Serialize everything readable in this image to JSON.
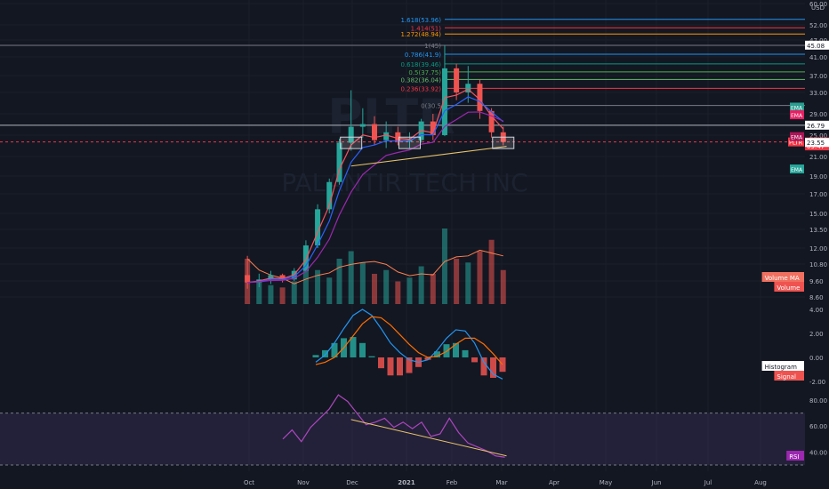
{
  "chart_data": {
    "type": "candlestick",
    "symbol": "PLTR",
    "watermark_text": "PLTR",
    "watermark_subtext": "PALANTIR TECH INC",
    "currency": "USD",
    "price_scale": {
      "ticks": [
        "60.00",
        "52.00",
        "47.00",
        "41.00",
        "37.00",
        "33.00",
        "29.00",
        "25.00",
        "21.00",
        "19.00",
        "17.00",
        "15.00",
        "13.50",
        "12.00",
        "10.80",
        "9.60",
        "8.60"
      ],
      "axis_badges": [
        {
          "label": "45.08",
          "value": 45.08,
          "color": "#ffffff",
          "text_color": "#131722"
        },
        {
          "label": "26.79",
          "value": 26.79,
          "color": "#ffffff",
          "text_color": "#131722"
        },
        {
          "label": "23.65",
          "value": 23.65,
          "color": "#f23645",
          "text_color": "#ffffff"
        },
        {
          "label": "09:47",
          "value": 22.9,
          "color": "#f23645",
          "text_color": "#ffffff"
        },
        {
          "label": "23.55",
          "value": 23.55,
          "color": "#ffffff",
          "text_color": "#131722"
        }
      ],
      "symbol_badge": "PLTR"
    },
    "indicator_badges": [
      {
        "label": "EMA",
        "value": 30.2,
        "color": "#2a9d8f"
      },
      {
        "label": "EMA",
        "value": 28.8,
        "color": "#e91e63"
      },
      {
        "label": "EMA",
        "value": 24.7,
        "color": "#ad1457"
      },
      {
        "label": "EMA",
        "value": 19.7,
        "color": "#26a69a"
      }
    ],
    "fibonacci": [
      {
        "label": "1.618(53.96)",
        "value": 53.96,
        "color": "#2196f3"
      },
      {
        "label": "1.414(51)",
        "value": 51.0,
        "color": "#f23645"
      },
      {
        "label": "1.272(48.94)",
        "value": 48.94,
        "color": "#ff9800"
      },
      {
        "label": "1(45)",
        "value": 45.0,
        "color": "#787b86"
      },
      {
        "label": "0.786(41.9)",
        "value": 41.9,
        "color": "#2196f3"
      },
      {
        "label": "0.618(39.46)",
        "value": 39.46,
        "color": "#089981"
      },
      {
        "label": "0.5(37.75)",
        "value": 37.75,
        "color": "#4caf50"
      },
      {
        "label": "0.382(36.04)",
        "value": 36.04,
        "color": "#66bb6a"
      },
      {
        "label": "0.236(33.92)",
        "value": 33.92,
        "color": "#f23645"
      },
      {
        "label": "0(30.5",
        "value": 30.5,
        "color": "#787b86"
      }
    ],
    "horizontal_lines": [
      {
        "value": 26.79,
        "color": "#b2b5be"
      },
      {
        "value": 23.65,
        "color": "#f23645",
        "style": "dotted"
      }
    ],
    "time_axis": [
      "Oct",
      "Nov",
      "Dec",
      "2021",
      "Feb",
      "Mar",
      "Apr",
      "May",
      "Jun",
      "Jul",
      "Aug"
    ],
    "candles_approx": [
      {
        "d": "2020-09-30",
        "o": 10.0,
        "h": 11.4,
        "l": 9.1,
        "c": 9.5
      },
      {
        "d": "2020-10-07",
        "o": 9.5,
        "h": 10.1,
        "l": 9.2,
        "c": 9.7
      },
      {
        "d": "2020-10-14",
        "o": 9.7,
        "h": 10.3,
        "l": 9.4,
        "c": 10.0
      },
      {
        "d": "2020-10-21",
        "o": 10.0,
        "h": 10.1,
        "l": 9.5,
        "c": 9.7
      },
      {
        "d": "2020-10-28",
        "o": 9.7,
        "h": 10.5,
        "l": 9.6,
        "c": 10.3
      },
      {
        "d": "2020-11-04",
        "o": 10.3,
        "h": 12.6,
        "l": 10.2,
        "c": 12.2
      },
      {
        "d": "2020-11-11",
        "o": 12.2,
        "h": 15.9,
        "l": 12.0,
        "c": 15.4
      },
      {
        "d": "2020-11-18",
        "o": 15.4,
        "h": 18.7,
        "l": 15.0,
        "c": 18.3
      },
      {
        "d": "2020-11-24",
        "o": 18.3,
        "h": 24.3,
        "l": 18.0,
        "c": 23.5
      },
      {
        "d": "2020-12-01",
        "o": 23.5,
        "h": 33.5,
        "l": 22.0,
        "c": 26.5
      },
      {
        "d": "2020-12-08",
        "o": 26.5,
        "h": 30.0,
        "l": 24.5,
        "c": 27.0
      },
      {
        "d": "2020-12-15",
        "o": 27.0,
        "h": 28.5,
        "l": 23.0,
        "c": 24.0
      },
      {
        "d": "2020-12-22",
        "o": 24.0,
        "h": 27.5,
        "l": 22.5,
        "c": 25.5
      },
      {
        "d": "2020-12-29",
        "o": 25.5,
        "h": 26.5,
        "l": 23.0,
        "c": 23.7
      },
      {
        "d": "2021-01-05",
        "o": 23.7,
        "h": 25.5,
        "l": 22.5,
        "c": 24.0
      },
      {
        "d": "2021-01-12",
        "o": 24.0,
        "h": 28.0,
        "l": 23.5,
        "c": 27.5
      },
      {
        "d": "2021-01-19",
        "o": 27.5,
        "h": 29.0,
        "l": 24.0,
        "c": 25.0
      },
      {
        "d": "2021-01-26",
        "o": 25.0,
        "h": 45.0,
        "l": 24.8,
        "c": 38.5
      },
      {
        "d": "2021-02-02",
        "o": 38.5,
        "h": 39.5,
        "l": 31.5,
        "c": 33.0
      },
      {
        "d": "2021-02-09",
        "o": 33.0,
        "h": 39.0,
        "l": 31.0,
        "c": 35.0
      },
      {
        "d": "2021-02-16",
        "o": 35.0,
        "h": 36.0,
        "l": 28.0,
        "c": 29.5
      },
      {
        "d": "2021-02-23",
        "o": 29.5,
        "h": 30.0,
        "l": 24.5,
        "c": 25.5
      },
      {
        "d": "2021-03-02",
        "o": 25.5,
        "h": 26.5,
        "l": 23.0,
        "c": 23.65
      }
    ],
    "volume": {
      "label": "Volume",
      "ma_label": "Volume MA",
      "values_approx": [
        60,
        30,
        25,
        22,
        30,
        55,
        45,
        35,
        60,
        70,
        55,
        40,
        45,
        30,
        35,
        50,
        40,
        100,
        60,
        55,
        70,
        85,
        45
      ],
      "ma_color": "#ff7f50"
    },
    "macd": {
      "ticks": [
        "4.00",
        "2.00",
        "0.00",
        "-2.00"
      ],
      "macd_color": "#2196f3",
      "signal_color": "#ff6d00",
      "histogram_label": "Histogram",
      "signal_label": "Signal",
      "macd_values_approx": [
        -0.4,
        0.2,
        1.2,
        2.4,
        3.5,
        4.0,
        3.5,
        2.4,
        1.2,
        0.4,
        -0.2,
        -0.4,
        -0.2,
        0.6,
        1.6,
        2.3,
        2.2,
        1.2,
        -0.4,
        -1.4,
        -1.8
      ],
      "signal_values_approx": [
        -0.6,
        -0.4,
        0.0,
        0.8,
        1.8,
        2.8,
        3.4,
        3.3,
        2.7,
        1.9,
        1.1,
        0.4,
        0.0,
        0.1,
        0.5,
        1.1,
        1.6,
        1.6,
        1.1,
        0.3,
        -0.6
      ]
    },
    "rsi": {
      "label": "RSI",
      "ticks": [
        "80.00",
        "60.00",
        "40.00"
      ],
      "overbought": 70,
      "oversold": 30,
      "line_color": "#ab47bc",
      "band_color": "#7e57c2",
      "values_approx": [
        50,
        57,
        48,
        59,
        66,
        73,
        84,
        79,
        70,
        61,
        63,
        66,
        59,
        63,
        58,
        63,
        52,
        54,
        66,
        55,
        47,
        44,
        41,
        37,
        36
      ]
    },
    "trendlines": [
      {
        "pane": "price",
        "from": {
          "d": "2020-12-01",
          "v": 20.0
        },
        "to": {
          "d": "2021-03-04",
          "v": 22.8
        },
        "color": "#e9c46a"
      },
      {
        "pane": "rsi",
        "from": {
          "d": "2020-12-01",
          "v": 65.0
        },
        "to": {
          "d": "2021-03-04",
          "v": 37.0
        },
        "color": "#e9c46a"
      }
    ],
    "support_boxes": [
      "2020-12-01",
      "2021-01-05",
      "2021-03-02"
    ]
  }
}
